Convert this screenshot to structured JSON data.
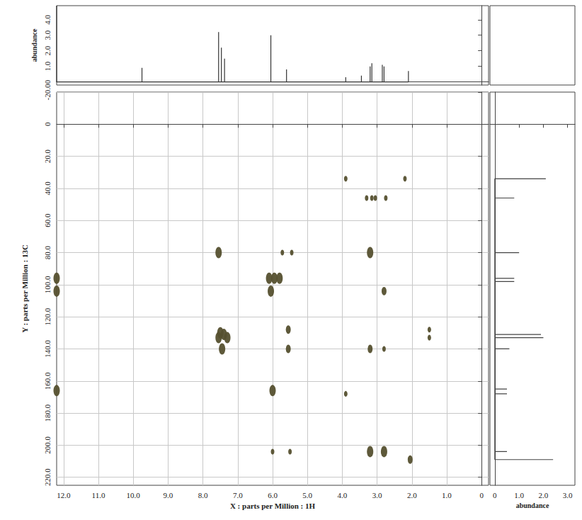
{
  "chart_data": [
    {
      "type": "scatter",
      "x_label": "X : parts per Million : 1H",
      "y_label": "Y : parts per Million : 13C",
      "xlim": [
        12.2,
        -0.2
      ],
      "ylim": [
        -20,
        225
      ],
      "xticks": [
        {
          "value": 12,
          "label": "12.0"
        },
        {
          "value": 11,
          "label": "11.0"
        },
        {
          "value": 10,
          "label": "10.0"
        },
        {
          "value": 9,
          "label": "9.0"
        },
        {
          "value": 8,
          "label": "8.0"
        },
        {
          "value": 7,
          "label": "7.0"
        },
        {
          "value": 6,
          "label": "6.0"
        },
        {
          "value": 5,
          "label": "5.0"
        },
        {
          "value": 4,
          "label": "4.0"
        },
        {
          "value": 3,
          "label": "3.0"
        },
        {
          "value": 2,
          "label": "2.0"
        },
        {
          "value": 1,
          "label": "1.0"
        },
        0
      ],
      "yticks": [
        {
          "value": -20,
          "label": "-20.0"
        },
        0,
        {
          "value": 20,
          "label": "20.0"
        },
        {
          "value": 40,
          "label": "40.0"
        },
        {
          "value": 60,
          "label": "60.0"
        },
        {
          "value": 80,
          "label": "80.0"
        },
        {
          "value": 100,
          "label": "100.0"
        },
        {
          "value": 120,
          "label": "120.0"
        },
        {
          "value": 140,
          "label": "140.0"
        },
        {
          "value": 160,
          "label": "160.0"
        },
        {
          "value": 180,
          "label": "180.0"
        },
        {
          "value": 200,
          "label": "200.0"
        },
        {
          "value": 220,
          "label": "220.0"
        }
      ],
      "grid": true,
      "color": "#55502f",
      "x": [
        12.2,
        12.2,
        12.2,
        7.55,
        5.72,
        5.45,
        3.2,
        6.1,
        5.95,
        5.8,
        6.05,
        7.5,
        7.4,
        7.3,
        7.55,
        7.45,
        5.55,
        5.55,
        3.2,
        2.8,
        6.0,
        3.9,
        3.2,
        2.8,
        6.0,
        5.5,
        2.05,
        2.8,
        3.9,
        2.2,
        3.3,
        3.15,
        3.05,
        2.75,
        1.5,
        1.5
      ],
      "y": [
        96,
        104,
        166,
        80,
        80,
        80,
        80,
        96,
        96,
        96,
        104,
        130,
        131,
        133,
        133,
        140,
        128,
        140,
        140,
        140,
        166,
        168,
        204,
        204,
        204,
        204,
        209,
        104,
        34,
        34,
        46,
        46,
        46,
        46,
        128,
        133
      ],
      "intensity": [
        3,
        3,
        3,
        3,
        1,
        1,
        3,
        3,
        3,
        3,
        3,
        3,
        3,
        3,
        3,
        3,
        2,
        2,
        2,
        1,
        3,
        1,
        3,
        3,
        1,
        1,
        2,
        2,
        1,
        1,
        1,
        1,
        1,
        1,
        1,
        1
      ]
    },
    {
      "type": "line",
      "y_label": "abundance",
      "xlim": [
        12.2,
        -0.2
      ],
      "ylim": [
        -0.2,
        4.9
      ],
      "yticks": [
        0,
        {
          "value": 1,
          "label": "1.0"
        },
        {
          "value": 2,
          "label": "2.0"
        },
        {
          "value": 3,
          "label": "3.0"
        },
        {
          "value": 4,
          "label": "4.0"
        }
      ],
      "tick_labels": "y",
      "color": "#333333",
      "x": [
        12.2,
        9.75,
        7.55,
        7.47,
        7.38,
        6.05,
        5.6,
        3.9,
        3.45,
        3.2,
        3.15,
        2.85,
        2.8,
        2.1
      ],
      "values": [
        4.9,
        0.9,
        3.2,
        2.2,
        1.5,
        3.0,
        0.8,
        0.3,
        0.4,
        1.0,
        1.2,
        1.1,
        1.0,
        0.7
      ]
    },
    {
      "type": "line",
      "orientation": "horizontal",
      "x_label": "abundance",
      "xlim": [
        -0.2,
        3.3
      ],
      "xticks": [
        0,
        {
          "value": 1,
          "label": "1.0"
        },
        {
          "value": 2,
          "label": "2.0"
        },
        {
          "value": 3,
          "label": "3.0"
        }
      ],
      "ylim": [
        -20,
        225
      ],
      "tick_labels": "x",
      "color": "#444444",
      "x": [
        34,
        46,
        80,
        96,
        98,
        131,
        133,
        140,
        165,
        168,
        204,
        209
      ],
      "values": [
        2.1,
        0.8,
        1.0,
        0.8,
        0.8,
        1.9,
        2.0,
        0.6,
        0.5,
        0.5,
        0.5,
        2.4
      ]
    }
  ]
}
